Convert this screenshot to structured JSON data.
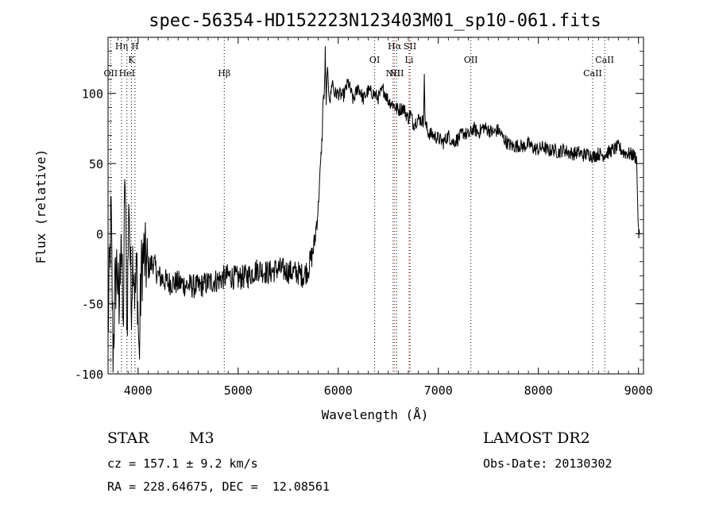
{
  "chart_data": {
    "type": "line",
    "title": "spec-56354-HD152223N123403M01_sp10-061.fits",
    "xlabel": "Wavelength (Å)",
    "ylabel": "Flux (relative)",
    "xlim": [
      3700,
      9050
    ],
    "ylim": [
      -100,
      140
    ],
    "x_ticks": [
      4000,
      5000,
      6000,
      7000,
      8000,
      9000
    ],
    "y_ticks": [
      -100,
      -50,
      0,
      50,
      100
    ],
    "grid": false,
    "series": [
      {
        "x": [
          3700,
          3730,
          3750,
          3770,
          3790,
          3810,
          3830,
          3850,
          3870,
          3890,
          3910,
          3930,
          3950,
          3970,
          3990,
          4010,
          4030,
          4050,
          4100,
          4150,
          4200,
          4300,
          4400,
          4500,
          4600,
          4700,
          4800,
          4900,
          5000,
          5100,
          5200,
          5300,
          5400,
          5500,
          5600,
          5650,
          5700,
          5720,
          5740,
          5760,
          5780,
          5800,
          5820,
          5840,
          5850,
          5860,
          5870,
          5880,
          5890,
          5900,
          5920,
          5940,
          5960,
          6000,
          6050,
          6100,
          6150,
          6200,
          6250,
          6300,
          6350,
          6400,
          6450,
          6500,
          6550,
          6600,
          6650,
          6700,
          6720,
          6750,
          6800,
          6850,
          6860,
          6870,
          6900,
          6950,
          7000,
          7050,
          7100,
          7150,
          7200,
          7250,
          7300,
          7350,
          7400,
          7450,
          7500,
          7550,
          7600,
          7650,
          7700,
          7750,
          7800,
          7850,
          7900,
          7950,
          8000,
          8050,
          8100,
          8150,
          8200,
          8250,
          8300,
          8350,
          8400,
          8450,
          8500,
          8550,
          8600,
          8650,
          8700,
          8750,
          8800,
          8850,
          8900,
          8950,
          8980,
          9000,
          9010
        ],
        "y": [
          -70,
          15,
          -85,
          -40,
          -20,
          -60,
          10,
          -75,
          45,
          -70,
          30,
          -50,
          -10,
          -45,
          -25,
          -90,
          -30,
          -15,
          -25,
          -20,
          -30,
          -35,
          -35,
          -37,
          -38,
          -35,
          -33,
          -30,
          -32,
          -30,
          -25,
          -28,
          -25,
          -27,
          -28,
          -30,
          -25,
          -20,
          -15,
          -8,
          5,
          20,
          45,
          70,
          100,
          95,
          130,
          90,
          120,
          105,
          95,
          110,
          100,
          100,
          98,
          108,
          95,
          105,
          96,
          102,
          100,
          97,
          103,
          95,
          92,
          88,
          90,
          82,
          86,
          78,
          82,
          80,
          110,
          78,
          72,
          70,
          68,
          65,
          70,
          65,
          68,
          72,
          70,
          75,
          72,
          76,
          74,
          72,
          74,
          68,
          64,
          62,
          63,
          62,
          64,
          61,
          60,
          62,
          59,
          60,
          58,
          60,
          58,
          57,
          58,
          56,
          57,
          55,
          57,
          56,
          58,
          60,
          62,
          58,
          57,
          56,
          54,
          0,
          0
        ],
        "color": "#000000"
      }
    ],
    "lines": [
      {
        "label": "OII",
        "x": 3727,
        "tier": 3,
        "color": "#000000"
      },
      {
        "label": "Hη",
        "x": 3835,
        "tier": 1,
        "color": "#000000"
      },
      {
        "label": "HeI",
        "x": 3889,
        "tier": 3,
        "color": "#000000"
      },
      {
        "label": "K",
        "x": 3934,
        "tier": 2,
        "color": "#000000"
      },
      {
        "label": "H",
        "x": 3969,
        "tier": 1,
        "color": "#000000"
      },
      {
        "label": "Hβ",
        "x": 4861,
        "tier": 3,
        "color": "#000000"
      },
      {
        "label": "OI",
        "x": 6364,
        "tier": 2,
        "color": "#000000"
      },
      {
        "label": "NII",
        "x": 6548,
        "tier": 3,
        "color": "#000000"
      },
      {
        "label": "Hα",
        "x": 6563,
        "tier": 1,
        "color": "#cc0000"
      },
      {
        "label": "NII",
        "x": 6584,
        "tier": 3,
        "color": "#000000"
      },
      {
        "label": "SII",
        "x": 6717,
        "tier": 1,
        "color": "#000000"
      },
      {
        "label": "Li",
        "x": 6708,
        "tier": 2,
        "color": "#cc0000"
      },
      {
        "label": "OII",
        "x": 7325,
        "tier": 2,
        "color": "#000000"
      },
      {
        "label": "CaII",
        "x": 8542,
        "tier": 3,
        "color": "#000000"
      },
      {
        "label": "CaII",
        "x": 8662,
        "tier": 2,
        "color": "#000000"
      }
    ]
  },
  "info": {
    "class": "STAR",
    "subclass": "M3",
    "survey": "LAMOST DR2",
    "cz": "cz = 157.1 ± 9.2 km/s",
    "obs_date": "Obs-Date: 20130302",
    "radec": "RA = 228.64675, DEC =  12.08561"
  }
}
